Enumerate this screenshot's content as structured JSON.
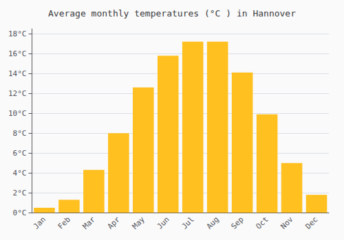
{
  "chart_data": {
    "type": "bar",
    "title": "Average monthly temperatures (°C ) in Hannover",
    "categories": [
      "Jan",
      "Feb",
      "Mar",
      "Apr",
      "May",
      "Jun",
      "Jul",
      "Aug",
      "Sep",
      "Oct",
      "Nov",
      "Dec"
    ],
    "values": [
      0.5,
      1.3,
      4.3,
      8.0,
      12.6,
      15.8,
      17.2,
      17.2,
      14.1,
      9.9,
      5.0,
      1.8
    ],
    "color": "#FFC020",
    "ylim": [
      0,
      18.5
    ],
    "yticks": [
      {
        "value": 0,
        "label": "0°C"
      },
      {
        "value": 2,
        "label": "2°C"
      },
      {
        "value": 4,
        "label": "4°C"
      },
      {
        "value": 6,
        "label": "6°C"
      },
      {
        "value": 8,
        "label": "8°C"
      },
      {
        "value": 10,
        "label": "10°C"
      },
      {
        "value": 12,
        "label": "12°C"
      },
      {
        "value": 14,
        "label": "14°C"
      },
      {
        "value": 16,
        "label": "16°C"
      },
      {
        "value": 18,
        "label": "18°C"
      }
    ],
    "grid": true
  }
}
